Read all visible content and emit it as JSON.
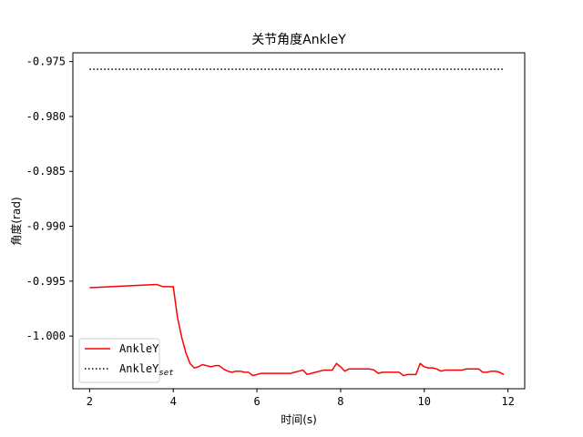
{
  "chart_data": {
    "type": "line",
    "title": "关节角度AnkleY",
    "xlabel": "时间(s)",
    "ylabel": "角度(rad)",
    "xlim": [
      1.6,
      12.4
    ],
    "ylim": [
      -1.0048,
      -0.9742
    ],
    "xticks": [
      2,
      4,
      6,
      8,
      10,
      12
    ],
    "yticks": [
      -0.975,
      -0.98,
      -0.985,
      -0.99,
      -0.995,
      -1.0
    ],
    "ytick_labels": [
      "-0.975",
      "-0.980",
      "-0.985",
      "-0.990",
      "-0.995",
      "-1.000"
    ],
    "grid": false,
    "legend_position": "lower-left",
    "series": [
      {
        "name": "AnkleY",
        "color": "#ff0000",
        "style": "solid",
        "x": [
          2.0,
          3.6,
          3.75,
          3.85,
          4.0,
          4.1,
          4.2,
          4.3,
          4.4,
          4.5,
          4.6,
          4.7,
          4.8,
          4.9,
          5.0,
          5.1,
          5.2,
          5.3,
          5.4,
          5.5,
          5.6,
          5.7,
          5.8,
          5.9,
          6.0,
          6.1,
          6.2,
          6.3,
          6.4,
          6.5,
          6.6,
          6.7,
          6.8,
          6.9,
          7.0,
          7.1,
          7.2,
          7.3,
          7.4,
          7.5,
          7.6,
          7.7,
          7.8,
          7.9,
          8.0,
          8.1,
          8.2,
          8.3,
          8.4,
          8.5,
          8.6,
          8.7,
          8.8,
          8.9,
          9.0,
          9.1,
          9.2,
          9.3,
          9.4,
          9.5,
          9.6,
          9.7,
          9.8,
          9.9,
          10.0,
          10.1,
          10.2,
          10.3,
          10.4,
          10.5,
          10.6,
          10.7,
          10.8,
          10.9,
          11.0,
          11.1,
          11.2,
          11.3,
          11.4,
          11.5,
          11.6,
          11.7,
          11.8,
          11.9
        ],
        "values": [
          -0.9956,
          -0.9953,
          -0.9955,
          -0.9955,
          -0.9955,
          -0.9983,
          -1.0001,
          -1.0015,
          -1.0025,
          -1.0029,
          -1.0028,
          -1.0026,
          -1.0027,
          -1.0028,
          -1.0027,
          -1.0027,
          -1.003,
          -1.0032,
          -1.0033,
          -1.0032,
          -1.0032,
          -1.0033,
          -1.0033,
          -1.0036,
          -1.0035,
          -1.0034,
          -1.0034,
          -1.0034,
          -1.0034,
          -1.0034,
          -1.0034,
          -1.0034,
          -1.0034,
          -1.0033,
          -1.0032,
          -1.0031,
          -1.0035,
          -1.0034,
          -1.0033,
          -1.0032,
          -1.0031,
          -1.0031,
          -1.0031,
          -1.0025,
          -1.0028,
          -1.0032,
          -1.003,
          -1.003,
          -1.003,
          -1.003,
          -1.003,
          -1.003,
          -1.0031,
          -1.0034,
          -1.0033,
          -1.0033,
          -1.0033,
          -1.0033,
          -1.0033,
          -1.0036,
          -1.0035,
          -1.0035,
          -1.0035,
          -1.0025,
          -1.0028,
          -1.0029,
          -1.0029,
          -1.003,
          -1.0032,
          -1.0031,
          -1.0031,
          -1.0031,
          -1.0031,
          -1.0031,
          -1.003,
          -1.003,
          -1.003,
          -1.003,
          -1.0033,
          -1.0033,
          -1.0032,
          -1.0032,
          -1.0033,
          -1.0035
        ]
      },
      {
        "name": "AnkleY",
        "name_subscript": "set",
        "color": "#000000",
        "style": "dotted",
        "x": [
          2.0,
          11.9
        ],
        "values": [
          -0.9757,
          -0.9757
        ]
      }
    ]
  }
}
